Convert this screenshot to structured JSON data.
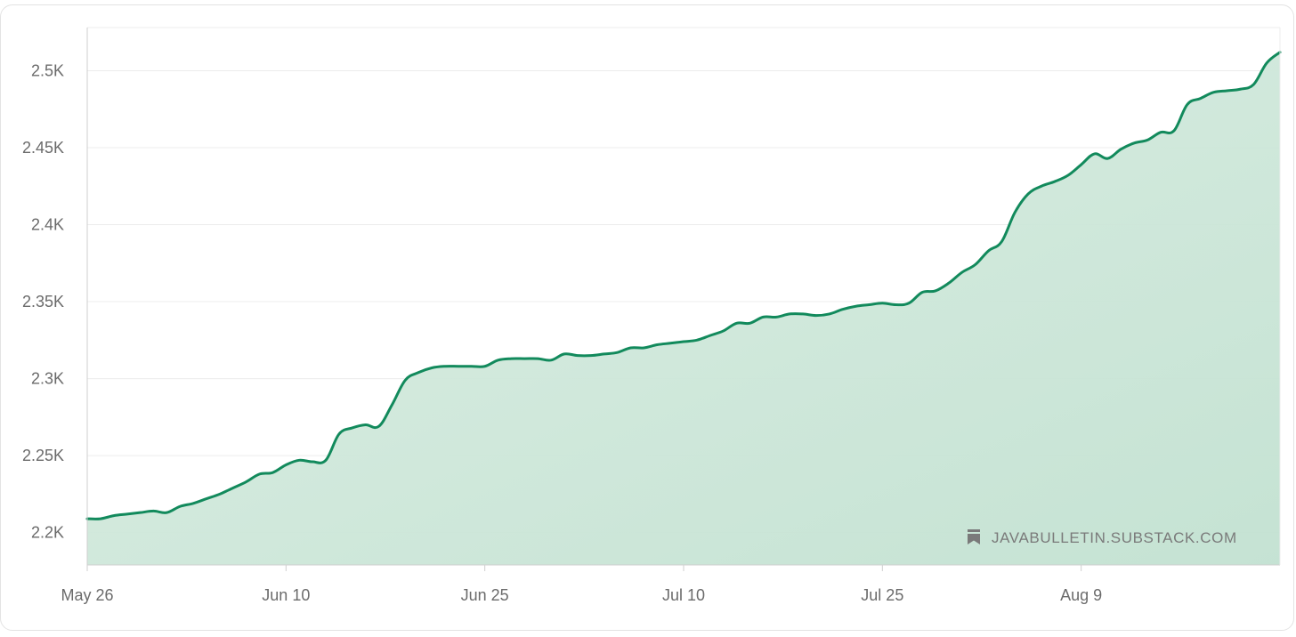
{
  "chart_data": {
    "type": "area",
    "title": "",
    "xlabel": "",
    "ylabel": "",
    "x_ticks": [
      "May 26",
      "Jun 10",
      "Jun 25",
      "Jul 10",
      "Jul 25",
      "Aug 9"
    ],
    "y_ticks": [
      "2.2K",
      "2.25K",
      "2.3K",
      "2.35K",
      "2.4K",
      "2.45K",
      "2.5K"
    ],
    "ylim": [
      2179,
      2528
    ],
    "xlim": [
      "2024-05-26",
      "2024-08-24"
    ],
    "grid": true,
    "colors": {
      "line": "#128a5c",
      "fill": "#b9dcca",
      "grid": "#ececec",
      "axis": "#cfcfcf"
    },
    "watermark": {
      "icon": "bookmark-icon",
      "text": "JAVABULLETIN.SUBSTACK.COM"
    },
    "series": [
      {
        "x": [
          "2024-05-26",
          "2024-05-27",
          "2024-05-28",
          "2024-05-29",
          "2024-05-30",
          "2024-05-31",
          "2024-06-01",
          "2024-06-02",
          "2024-06-03",
          "2024-06-04",
          "2024-06-05",
          "2024-06-06",
          "2024-06-07",
          "2024-06-08",
          "2024-06-09",
          "2024-06-10",
          "2024-06-11",
          "2024-06-12",
          "2024-06-13",
          "2024-06-14",
          "2024-06-15",
          "2024-06-16",
          "2024-06-17",
          "2024-06-18",
          "2024-06-19",
          "2024-06-20",
          "2024-06-21",
          "2024-06-22",
          "2024-06-23",
          "2024-06-24",
          "2024-06-25",
          "2024-06-26",
          "2024-06-27",
          "2024-06-28",
          "2024-06-29",
          "2024-06-30",
          "2024-07-01",
          "2024-07-02",
          "2024-07-03",
          "2024-07-04",
          "2024-07-05",
          "2024-07-06",
          "2024-07-07",
          "2024-07-08",
          "2024-07-09",
          "2024-07-10",
          "2024-07-11",
          "2024-07-12",
          "2024-07-13",
          "2024-07-14",
          "2024-07-15",
          "2024-07-16",
          "2024-07-17",
          "2024-07-18",
          "2024-07-19",
          "2024-07-20",
          "2024-07-21",
          "2024-07-22",
          "2024-07-23",
          "2024-07-24",
          "2024-07-25",
          "2024-07-26",
          "2024-07-27",
          "2024-07-28",
          "2024-07-29",
          "2024-07-30",
          "2024-07-31",
          "2024-08-01",
          "2024-08-02",
          "2024-08-03",
          "2024-08-04",
          "2024-08-05",
          "2024-08-06",
          "2024-08-07",
          "2024-08-08",
          "2024-08-09",
          "2024-08-10",
          "2024-08-11",
          "2024-08-12",
          "2024-08-13",
          "2024-08-14",
          "2024-08-15",
          "2024-08-16",
          "2024-08-17",
          "2024-08-18",
          "2024-08-19",
          "2024-08-20",
          "2024-08-21",
          "2024-08-22",
          "2024-08-23",
          "2024-08-24"
        ],
        "y": [
          2209,
          2209,
          2211,
          2212,
          2213,
          2214,
          2213,
          2217,
          2219,
          2222,
          2225,
          2229,
          2233,
          2238,
          2239,
          2244,
          2247,
          2246,
          2247,
          2264,
          2268,
          2270,
          2269,
          2283,
          2299,
          2304,
          2307,
          2308,
          2308,
          2308,
          2308,
          2312,
          2313,
          2313,
          2313,
          2312,
          2316,
          2315,
          2315,
          2316,
          2317,
          2320,
          2320,
          2322,
          2323,
          2324,
          2325,
          2328,
          2331,
          2336,
          2336,
          2340,
          2340,
          2342,
          2342,
          2341,
          2342,
          2345,
          2347,
          2348,
          2349,
          2348,
          2349,
          2356,
          2357,
          2362,
          2369,
          2374,
          2383,
          2389,
          2408,
          2420,
          2425,
          2428,
          2432,
          2439,
          2446,
          2443,
          2449,
          2453,
          2455,
          2460,
          2461,
          2478,
          2482,
          2486,
          2487,
          2488,
          2491,
          2505,
          2512
        ]
      }
    ]
  }
}
